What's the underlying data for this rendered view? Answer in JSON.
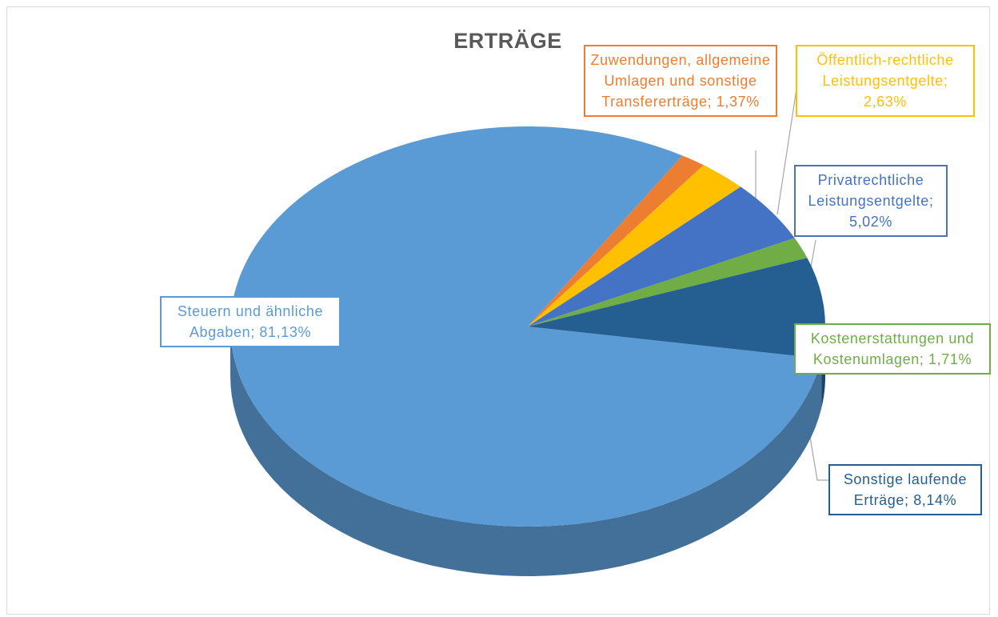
{
  "chart_data": {
    "type": "pie",
    "title": "ERTRÄGE",
    "style": "3d",
    "slices": [
      {
        "name": "Steuern und ähnliche Abgaben",
        "value": 81.13,
        "label": "Steuern und ähnliche Abgaben; 81,13%",
        "color": "#5b9bd5"
      },
      {
        "name": "Zuwendungen, allgemeine Umlagen und sonstige Transfererträge",
        "value": 1.37,
        "label": "Zuwendungen, allgemeine Umlagen und sonstige Transfererträge; 1,37%",
        "color": "#ed7d31"
      },
      {
        "name": "Öffentlich-rechtliche Leistungsentgelte",
        "value": 2.63,
        "label": "Öffentlich-rechtliche Leistungsentgelte; 2,63%",
        "color": "#ffc000"
      },
      {
        "name": "Privatrechtliche Leistungsentgelte",
        "value": 5.02,
        "label": "Privatrechtliche Leistungsentgelte; 5,02%",
        "color": "#4472c4"
      },
      {
        "name": "Kostenerstattungen und Kostenumlagen",
        "value": 1.71,
        "label": "Kostenerstattungen und Kostenumlagen; 1,71%",
        "color": "#70ad47"
      },
      {
        "name": "Sonstige laufende Erträge",
        "value": 8.14,
        "label": "Sonstige laufende Erträge; 8,14%",
        "color": "#255e91"
      }
    ]
  }
}
